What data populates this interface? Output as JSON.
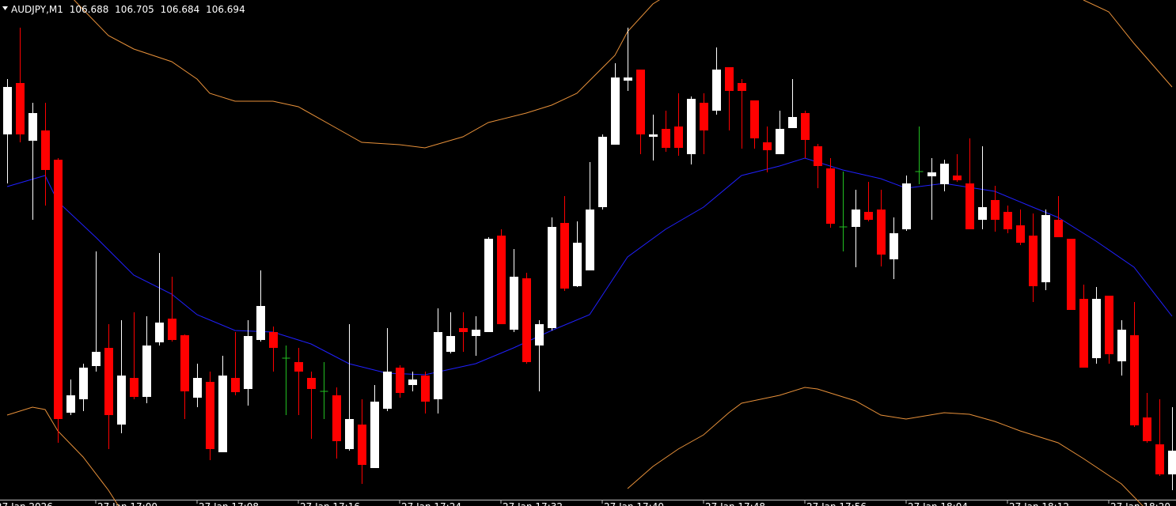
{
  "chart_data": {
    "type": "candlestick",
    "title": "AUDJPY,M1",
    "x": [
      1013,
      1014,
      1015,
      1016,
      1017,
      1018,
      1019,
      1020,
      1021,
      1022,
      1023,
      1024,
      1025,
      1026,
      1027,
      1028,
      1029,
      1030,
      1031,
      1032,
      1033,
      1034,
      1035,
      1036,
      1037,
      1038,
      1039,
      1040,
      1041,
      1042,
      1043,
      1044,
      1045,
      1046,
      1047,
      1048,
      1049,
      1050,
      1051,
      1052,
      1053,
      1054,
      1055,
      1056,
      1057,
      1058,
      1059,
      1060,
      1061,
      1062,
      1063,
      1064,
      1065,
      1066,
      1067,
      1068,
      1069,
      1070,
      1071,
      1072,
      1073,
      1074,
      1075,
      1076,
      1077,
      1078,
      1079,
      1080,
      1081,
      1082,
      1083,
      1084,
      1085,
      1086,
      1087,
      1088,
      1089,
      1090,
      1091,
      1092,
      1093,
      1094,
      1095,
      1096,
      1097,
      1098,
      1099,
      1100,
      1101,
      1102,
      1103,
      1104,
      1105
    ],
    "open": [
      106.774,
      106.787,
      106.7724,
      106.775,
      106.7676,
      106.7036,
      106.707,
      106.7154,
      106.72,
      106.7006,
      106.7124,
      106.7076,
      106.7214,
      106.7274,
      106.7232,
      106.7074,
      106.7114,
      106.6936,
      106.7124,
      106.7096,
      106.722,
      106.724,
      106.7174,
      106.7164,
      106.7124,
      106.709,
      106.708,
      106.6944,
      106.7006,
      106.6896,
      106.7046,
      106.715,
      106.7106,
      106.713,
      106.707,
      106.719,
      106.725,
      106.723,
      106.724,
      106.7484,
      106.7246,
      106.7376,
      106.7206,
      106.725,
      106.7516,
      106.7356,
      106.7396,
      106.7556,
      106.7714,
      106.7876,
      106.7904,
      106.7734,
      106.7754,
      106.776,
      106.769,
      106.782,
      106.78,
      106.791,
      106.787,
      106.7826,
      106.772,
      106.769,
      106.7756,
      106.7794,
      106.771,
      106.7654,
      106.7506,
      106.7506,
      106.7544,
      106.755,
      106.7424,
      106.75,
      106.7646,
      106.7634,
      106.7614,
      106.7636,
      106.7616,
      106.7524,
      106.7574,
      106.7544,
      106.751,
      106.7484,
      106.7366,
      106.7524,
      106.7476,
      106.7324,
      106.7174,
      106.7332,
      106.7166,
      106.7232,
      106.7024,
      106.6956,
      106.688
    ],
    "high": [
      106.788,
      106.801,
      106.782,
      106.782,
      106.768,
      106.712,
      106.716,
      106.7444,
      106.726,
      106.727,
      106.729,
      106.728,
      106.744,
      106.738,
      106.7234,
      106.716,
      106.714,
      106.718,
      106.724,
      106.727,
      106.7396,
      106.7254,
      106.7206,
      106.72,
      106.714,
      106.7164,
      106.71,
      106.726,
      106.707,
      106.7106,
      106.725,
      106.7156,
      106.714,
      106.714,
      106.73,
      106.729,
      106.729,
      106.728,
      106.748,
      106.75,
      106.745,
      106.739,
      106.727,
      106.753,
      106.7584,
      106.752,
      106.767,
      106.774,
      106.792,
      106.801,
      106.7904,
      106.779,
      106.78,
      106.7844,
      106.7836,
      106.7844,
      106.796,
      106.791,
      106.788,
      106.7826,
      106.776,
      106.78,
      106.788,
      106.78,
      106.7716,
      106.768,
      106.7646,
      106.76,
      106.762,
      106.76,
      106.753,
      106.7636,
      106.776,
      106.768,
      106.7676,
      106.769,
      106.773,
      106.771,
      106.761,
      106.756,
      106.755,
      106.754,
      106.755,
      106.7584,
      106.7476,
      106.736,
      106.7354,
      106.7332,
      106.727,
      106.7316,
      106.7086,
      106.707,
      106.705
    ],
    "low": [
      106.7616,
      106.772,
      106.7524,
      106.756,
      106.696,
      106.703,
      106.704,
      106.714,
      106.6944,
      106.6984,
      106.707,
      106.706,
      106.7206,
      106.7216,
      106.702,
      106.705,
      106.6916,
      106.6936,
      106.708,
      106.7054,
      106.7216,
      106.714,
      106.703,
      106.703,
      106.697,
      106.702,
      106.692,
      106.694,
      106.6856,
      106.6896,
      106.704,
      106.7074,
      106.709,
      106.7034,
      106.7034,
      106.7186,
      106.719,
      106.718,
      106.724,
      106.726,
      106.724,
      106.716,
      106.709,
      106.7244,
      106.7344,
      106.7354,
      106.7396,
      106.755,
      106.7714,
      106.785,
      106.769,
      106.7674,
      106.7696,
      106.7686,
      106.7664,
      106.769,
      106.779,
      106.775,
      106.7704,
      106.7704,
      106.7644,
      106.769,
      106.7756,
      106.768,
      106.7604,
      106.7504,
      106.7444,
      106.7404,
      106.752,
      106.7406,
      106.7374,
      106.7496,
      106.7614,
      106.7524,
      106.7596,
      106.762,
      106.75,
      106.75,
      106.7494,
      106.749,
      106.746,
      106.7316,
      106.7346,
      106.748,
      106.7296,
      106.715,
      106.716,
      106.716,
      106.713,
      106.7,
      106.696,
      106.6876,
      106.684
    ],
    "close": [
      106.786,
      106.774,
      106.7794,
      106.765,
      106.702,
      106.708,
      106.715,
      106.719,
      106.703,
      106.713,
      106.7076,
      106.7206,
      106.7264,
      106.722,
      106.709,
      106.7124,
      106.6944,
      106.713,
      106.7088,
      106.723,
      106.7306,
      106.72,
      106.7174,
      106.714,
      106.7096,
      106.709,
      106.6964,
      106.702,
      106.6904,
      106.7064,
      106.714,
      106.7086,
      106.712,
      106.7064,
      106.724,
      106.723,
      106.724,
      106.7246,
      106.7476,
      106.726,
      106.738,
      106.7164,
      106.726,
      106.7506,
      106.735,
      106.7466,
      106.755,
      106.7734,
      106.7884,
      106.7884,
      106.774,
      106.774,
      106.7706,
      106.7706,
      106.783,
      106.775,
      106.7904,
      106.785,
      106.785,
      106.773,
      106.77,
      106.7754,
      106.7784,
      106.7726,
      106.766,
      106.7514,
      106.7506,
      106.755,
      106.7524,
      106.7436,
      106.749,
      106.7616,
      106.7646,
      106.7644,
      106.7666,
      106.7624,
      106.75,
      106.7556,
      106.7524,
      106.75,
      106.7466,
      106.7356,
      106.7536,
      106.748,
      106.7296,
      106.715,
      106.7324,
      106.7184,
      106.7246,
      106.7004,
      106.6964,
      106.688,
      106.694
    ],
    "up_color": "#ffffff",
    "down_color": "#ff0000",
    "doji_color": "#22c022",
    "lines": [
      {
        "color": "#2020ff",
        "x": [
          1013,
          1016,
          1017,
          1020,
          1023,
          1026,
          1028,
          1031,
          1034,
          1037,
          1040,
          1043,
          1046,
          1050,
          1053,
          1056,
          1059,
          1062,
          1065,
          1068,
          1071,
          1074,
          1076,
          1079,
          1082,
          1084,
          1087,
          1091,
          1094,
          1096,
          1099,
          1102,
          1105
        ],
        "values": [
          106.7608,
          106.7636,
          106.757,
          106.748,
          106.7384,
          106.7336,
          106.7284,
          106.7244,
          106.724,
          106.721,
          106.716,
          106.7136,
          106.7132,
          106.716,
          106.72,
          106.7244,
          106.7284,
          106.743,
          106.75,
          106.7556,
          106.7636,
          106.766,
          106.768,
          106.765,
          106.7628,
          106.7604,
          106.7616,
          106.7596,
          106.7556,
          106.753,
          106.747,
          106.7404,
          106.728
        ]
      },
      {
        "color": "#e8913a",
        "x": [
          1018,
          1019,
          1021,
          1023,
          1026,
          1028,
          1029,
          1031,
          1034,
          1036,
          1039,
          1041,
          1044,
          1046,
          1049,
          1051,
          1054,
          1056,
          1058,
          1059,
          1061,
          1062,
          1064,
          1066,
          1083,
          1098,
          1100,
          1102,
          1105
        ],
        "values": [
          106.809,
          106.8056,
          106.799,
          106.7956,
          106.7924,
          106.788,
          106.7844,
          106.7824,
          106.7824,
          106.781,
          106.7756,
          106.772,
          106.7714,
          106.7706,
          106.7734,
          106.777,
          106.7794,
          106.7814,
          106.7844,
          106.7876,
          106.794,
          106.8,
          106.807,
          106.811,
          null,
          106.808,
          106.805,
          106.797,
          106.786
        ]
      },
      {
        "color": "#e8913a",
        "x": [
          1013,
          1015,
          1016,
          1017,
          1019,
          1021,
          1022,
          1043,
          1062,
          1064,
          1066,
          1068,
          1070,
          1071,
          1074,
          1076,
          1077,
          1080,
          1082,
          1084,
          1087,
          1089,
          1091,
          1093,
          1096,
          1098,
          1101,
          1103
        ],
        "values": [
          106.703,
          106.705,
          106.7044,
          106.699,
          106.6924,
          106.684,
          106.679,
          null,
          106.6844,
          106.69,
          106.6944,
          106.698,
          106.7036,
          106.706,
          106.708,
          106.71,
          106.7096,
          106.7066,
          106.703,
          106.702,
          106.7036,
          106.7032,
          106.7014,
          106.699,
          106.696,
          106.692,
          106.6856,
          106.679
        ]
      }
    ],
    "xlim": [
      1012.4375,
      1105.3125
    ],
    "ylim": [
      106.68,
      106.808
    ],
    "xticks": [
      {
        "value": 1012,
        "label": "27 Jan 2026"
      },
      {
        "value": 1020,
        "label": "27 Jan 17:00"
      },
      {
        "value": 1028,
        "label": "27 Jan 17:08"
      },
      {
        "value": 1036,
        "label": "27 Jan 17:16"
      },
      {
        "value": 1044,
        "label": "27 Jan 17:24"
      },
      {
        "value": 1052,
        "label": "27 Jan 17:32"
      },
      {
        "value": 1060,
        "label": "27 Jan 17:40"
      },
      {
        "value": 1068,
        "label": "27 Jan 17:48"
      },
      {
        "value": 1076,
        "label": "27 Jan 17:56"
      },
      {
        "value": 1084,
        "label": "27 Jan 18:04"
      },
      {
        "value": 1092,
        "label": "27 Jan 18:12"
      },
      {
        "value": 1100,
        "label": "27 Jan 18:20"
      }
    ]
  }
}
